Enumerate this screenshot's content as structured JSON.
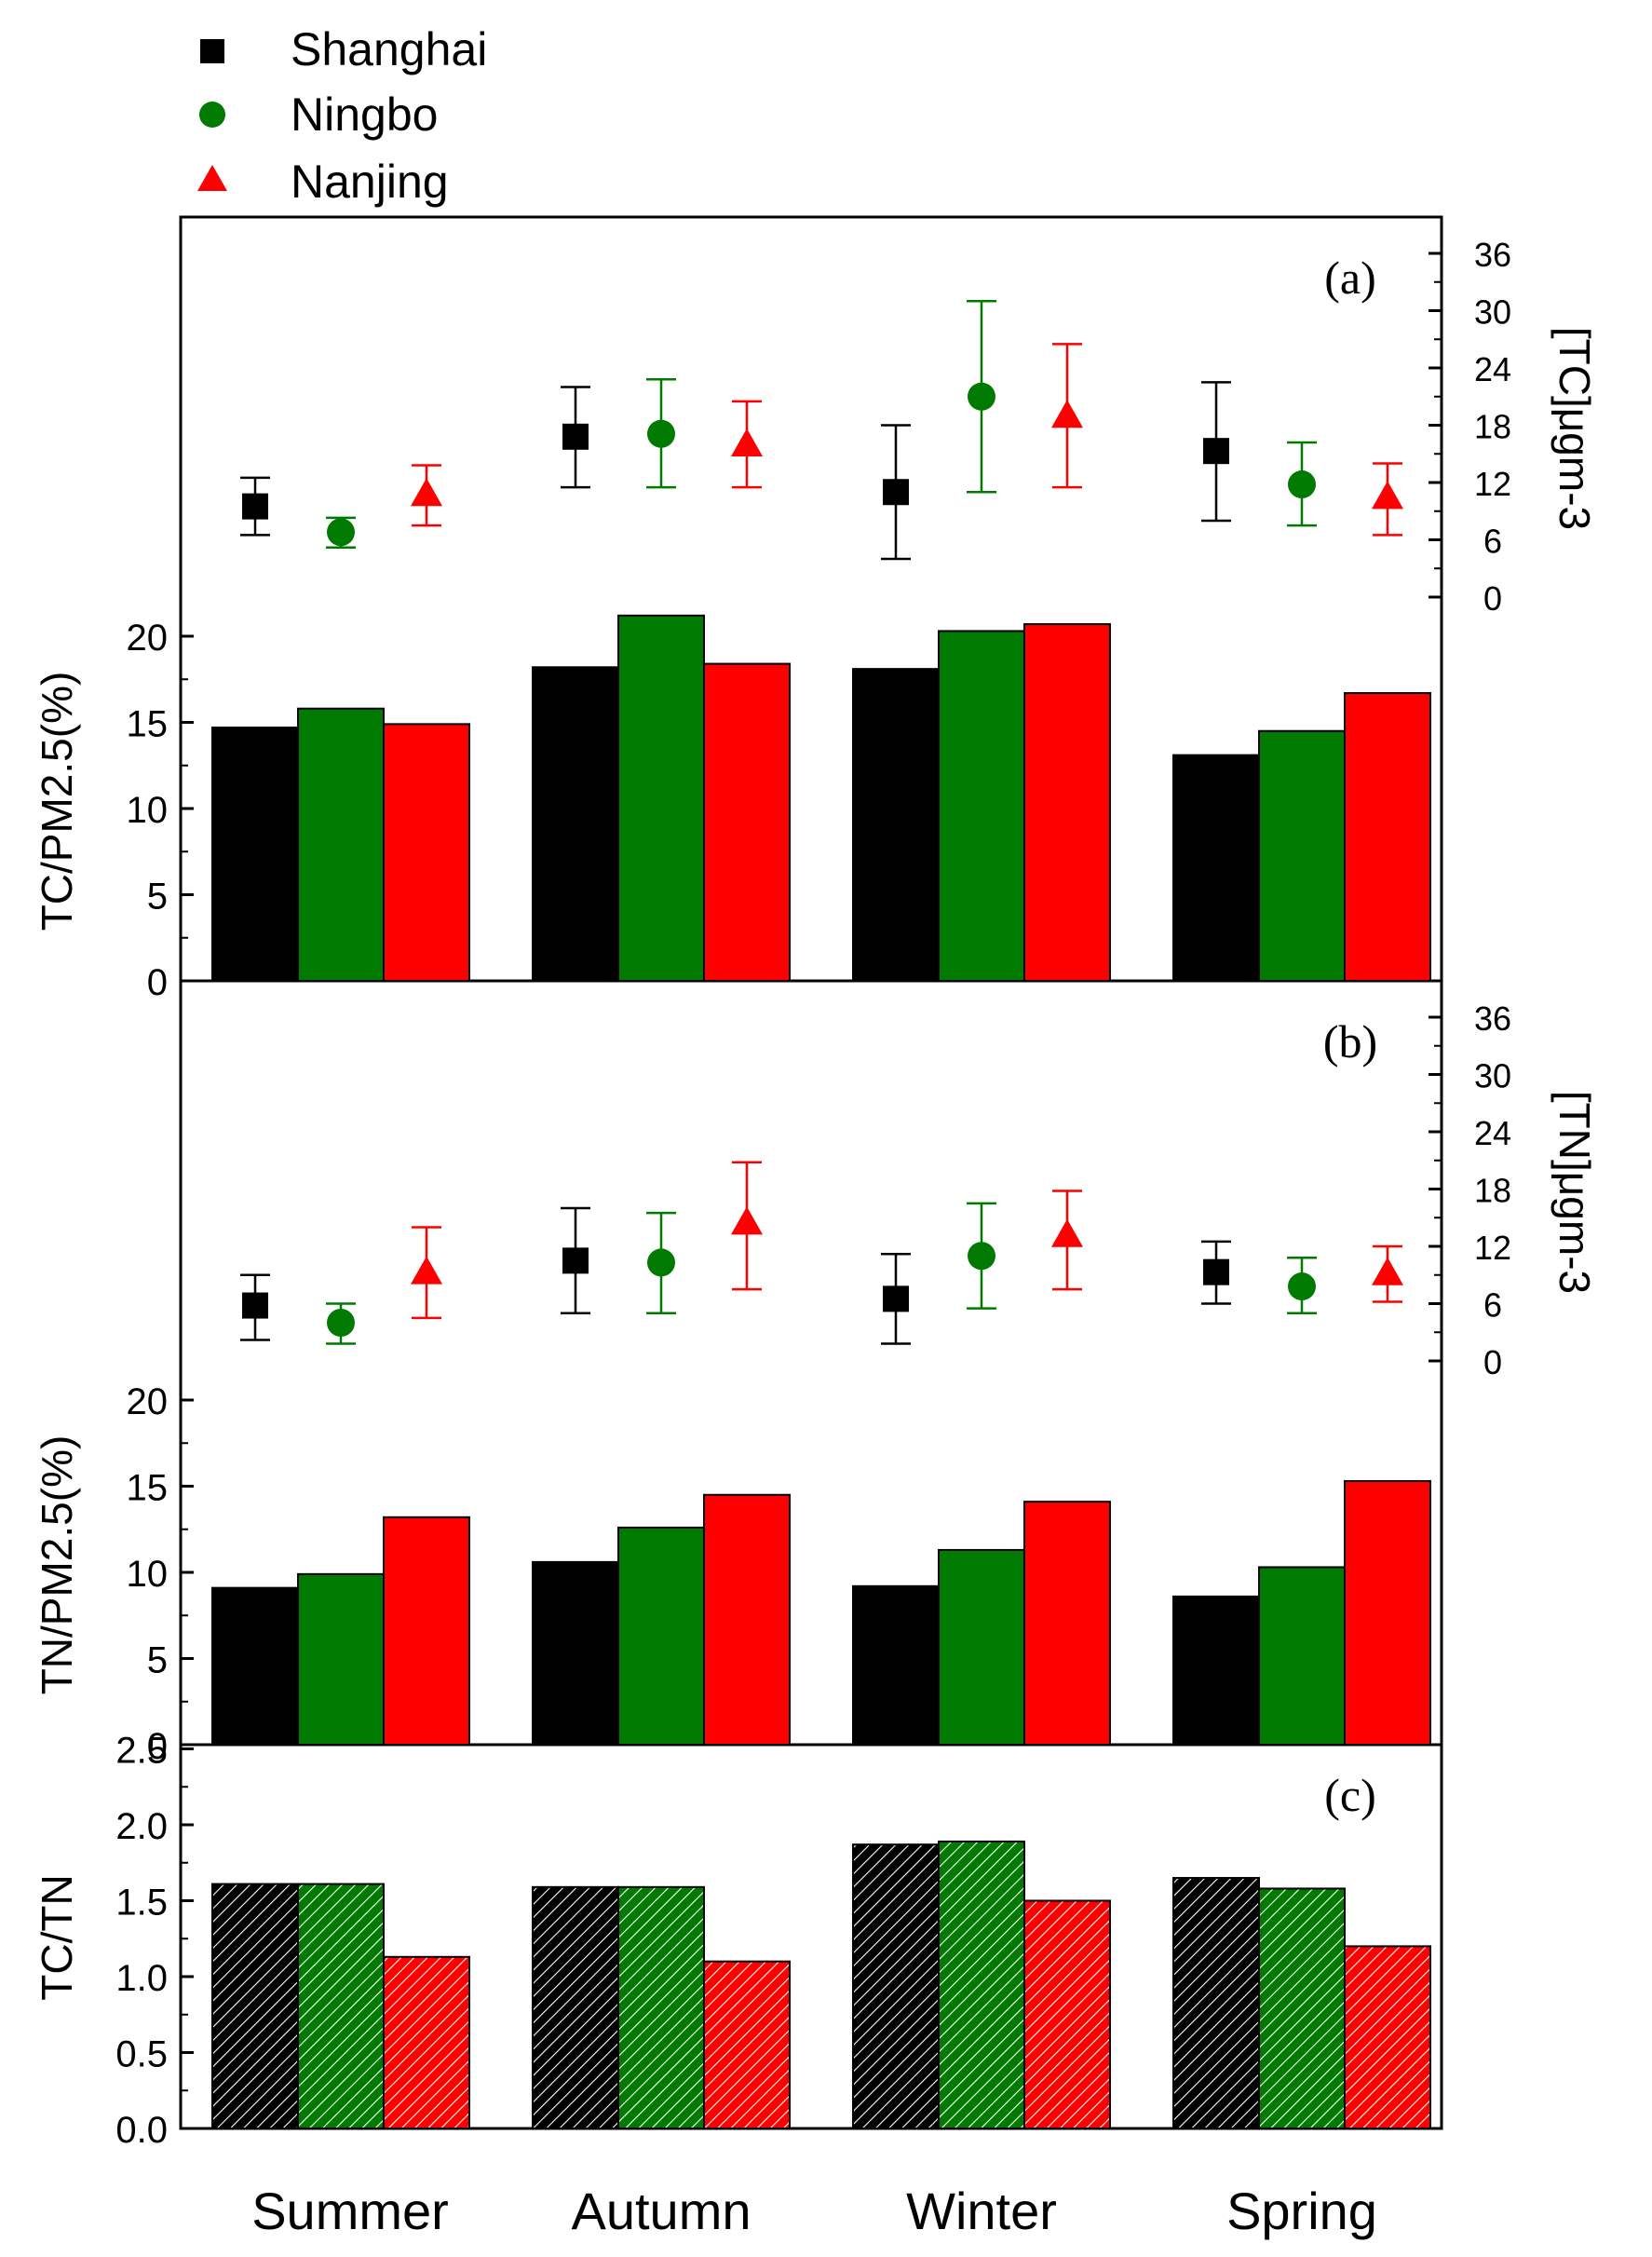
{
  "legend": [
    {
      "name": "Shanghai",
      "color": "#000000",
      "marker": "square"
    },
    {
      "name": "Ningbo",
      "color": "#007a00",
      "marker": "circle"
    },
    {
      "name": "Nanjing",
      "color": "#ff0000",
      "marker": "triangle"
    }
  ],
  "chart_data": [
    {
      "panel": "(a)",
      "type": "bar",
      "categories": [
        "Summer",
        "Autumn",
        "Winter",
        "Spring"
      ],
      "ylabel": "TC/PM2.5(%)",
      "ylim": [
        0,
        20
      ],
      "yticks": [
        "0",
        "5",
        "10",
        "15",
        "20"
      ],
      "series": [
        {
          "name": "Shanghai",
          "values": [
            14.7,
            18.2,
            18.1,
            13.1
          ]
        },
        {
          "name": "Ningbo",
          "values": [
            15.8,
            21.2,
            20.3,
            14.5
          ]
        },
        {
          "name": "Nanjing",
          "values": [
            14.9,
            18.4,
            20.7,
            16.7
          ]
        }
      ],
      "secondary": {
        "type": "scatter",
        "ylabel": "[TC]μgm-3",
        "ylim": [
          0,
          36
        ],
        "yticks": [
          "0",
          "6",
          "12",
          "18",
          "24",
          "30",
          "36"
        ],
        "series": [
          {
            "name": "Shanghai",
            "values": [
              9.5,
              16.8,
              11.0,
              15.3
            ],
            "err_low": [
              6.5,
              11.5,
              4.0,
              8.0
            ],
            "err_high": [
              12.5,
              22.0,
              18.0,
              22.5
            ]
          },
          {
            "name": "Ningbo",
            "values": [
              6.8,
              17.1,
              21.0,
              11.8
            ],
            "err_low": [
              5.2,
              11.5,
              11.0,
              7.5
            ],
            "err_high": [
              8.3,
              22.8,
              31.0,
              16.2
            ]
          },
          {
            "name": "Nanjing",
            "values": [
              10.8,
              16.0,
              19.0,
              10.5
            ],
            "err_low": [
              7.5,
              11.5,
              11.5,
              6.5
            ],
            "err_high": [
              13.8,
              20.5,
              26.5,
              14.0
            ]
          }
        ]
      }
    },
    {
      "panel": "(b)",
      "type": "bar",
      "categories": [
        "Summer",
        "Autumn",
        "Winter",
        "Spring"
      ],
      "ylabel": "TN/PM2.5(%)",
      "ylim": [
        0,
        20
      ],
      "yticks": [
        "0",
        "5",
        "10",
        "15",
        "20"
      ],
      "series": [
        {
          "name": "Shanghai",
          "values": [
            9.1,
            10.6,
            9.2,
            8.6
          ]
        },
        {
          "name": "Ningbo",
          "values": [
            9.9,
            12.6,
            11.3,
            10.3
          ]
        },
        {
          "name": "Nanjing",
          "values": [
            13.2,
            14.5,
            14.1,
            15.3
          ]
        }
      ],
      "secondary": {
        "type": "scatter",
        "ylabel": "[TN]μgm-3",
        "ylim": [
          0,
          36
        ],
        "yticks": [
          "0",
          "6",
          "12",
          "18",
          "24",
          "30",
          "36"
        ],
        "series": [
          {
            "name": "Shanghai",
            "values": [
              5.8,
              10.5,
              6.5,
              9.3
            ],
            "err_low": [
              2.2,
              5.0,
              1.8,
              6.0
            ],
            "err_high": [
              9.0,
              16.0,
              11.2,
              12.5
            ]
          },
          {
            "name": "Ningbo",
            "values": [
              4.0,
              10.3,
              11.0,
              7.8
            ],
            "err_low": [
              1.8,
              5.0,
              5.5,
              5.0
            ],
            "err_high": [
              6.0,
              15.5,
              16.5,
              10.8
            ]
          },
          {
            "name": "Nanjing",
            "values": [
              9.3,
              14.5,
              13.2,
              9.2
            ],
            "err_low": [
              4.5,
              7.5,
              7.5,
              6.2
            ],
            "err_high": [
              14.0,
              20.8,
              17.8,
              12.0
            ]
          }
        ]
      }
    },
    {
      "panel": "(c)",
      "type": "bar",
      "categories": [
        "Summer",
        "Autumn",
        "Winter",
        "Spring"
      ],
      "ylabel": "TC/TN",
      "ylim": [
        0,
        2.5
      ],
      "yticks": [
        "0.0",
        "0.5",
        "1.0",
        "1.5",
        "2.0",
        "2.5"
      ],
      "hatched": true,
      "series": [
        {
          "name": "Shanghai",
          "values": [
            1.61,
            1.59,
            1.87,
            1.65
          ]
        },
        {
          "name": "Ningbo",
          "values": [
            1.61,
            1.59,
            1.89,
            1.58
          ]
        },
        {
          "name": "Nanjing",
          "values": [
            1.13,
            1.1,
            1.5,
            1.2
          ]
        }
      ]
    }
  ]
}
